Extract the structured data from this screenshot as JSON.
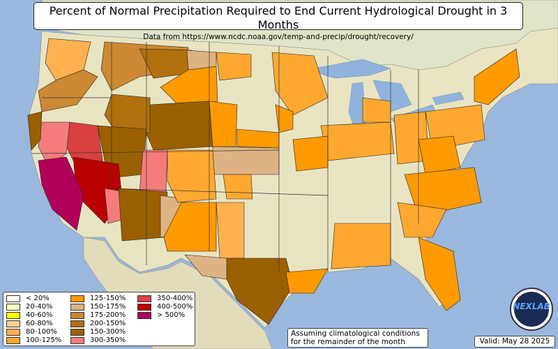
{
  "title": "Percent of Normal Precipitation Required to End Current Hydrological Drought in 3 Months",
  "subtitle": "Data from https://www.ncdc.noaa.gov/temp-and-precip/drought/recovery/",
  "note_line1": "Assuming climatological conditions",
  "note_line2": "for the remainder of the month",
  "valid": "Valid: May 28 2025",
  "logo": "NEXLAB",
  "colors": {
    "ocean": "#9ab8dd",
    "land": "#e8e4c2",
    "lake": "#8fb3dc"
  },
  "legend": [
    {
      "label": "< 20%",
      "color": "#fffff0"
    },
    {
      "label": "20-40%",
      "color": "#ffffc0"
    },
    {
      "label": "40-60%",
      "color": "#ffff00"
    },
    {
      "label": "60-80%",
      "color": "#ffd090"
    },
    {
      "label": "80-100%",
      "color": "#ffb050"
    },
    {
      "label": "100-125%",
      "color": "#ffa830"
    },
    {
      "label": "125-150%",
      "color": "#ff9a00"
    },
    {
      "label": "150-175%",
      "color": "#ddb383"
    },
    {
      "label": "175-200%",
      "color": "#cc8833"
    },
    {
      "label": "200-150%",
      "color": "#b2700f"
    },
    {
      "label": "150-300%",
      "color": "#9a6000"
    },
    {
      "label": "300-350%",
      "color": "#f47c7c"
    },
    {
      "label": "350-400%",
      "color": "#d94040"
    },
    {
      "label": "400-500%",
      "color": "#bb0000"
    },
    {
      "label": "> 500%",
      "color": "#b0005a"
    }
  ]
}
